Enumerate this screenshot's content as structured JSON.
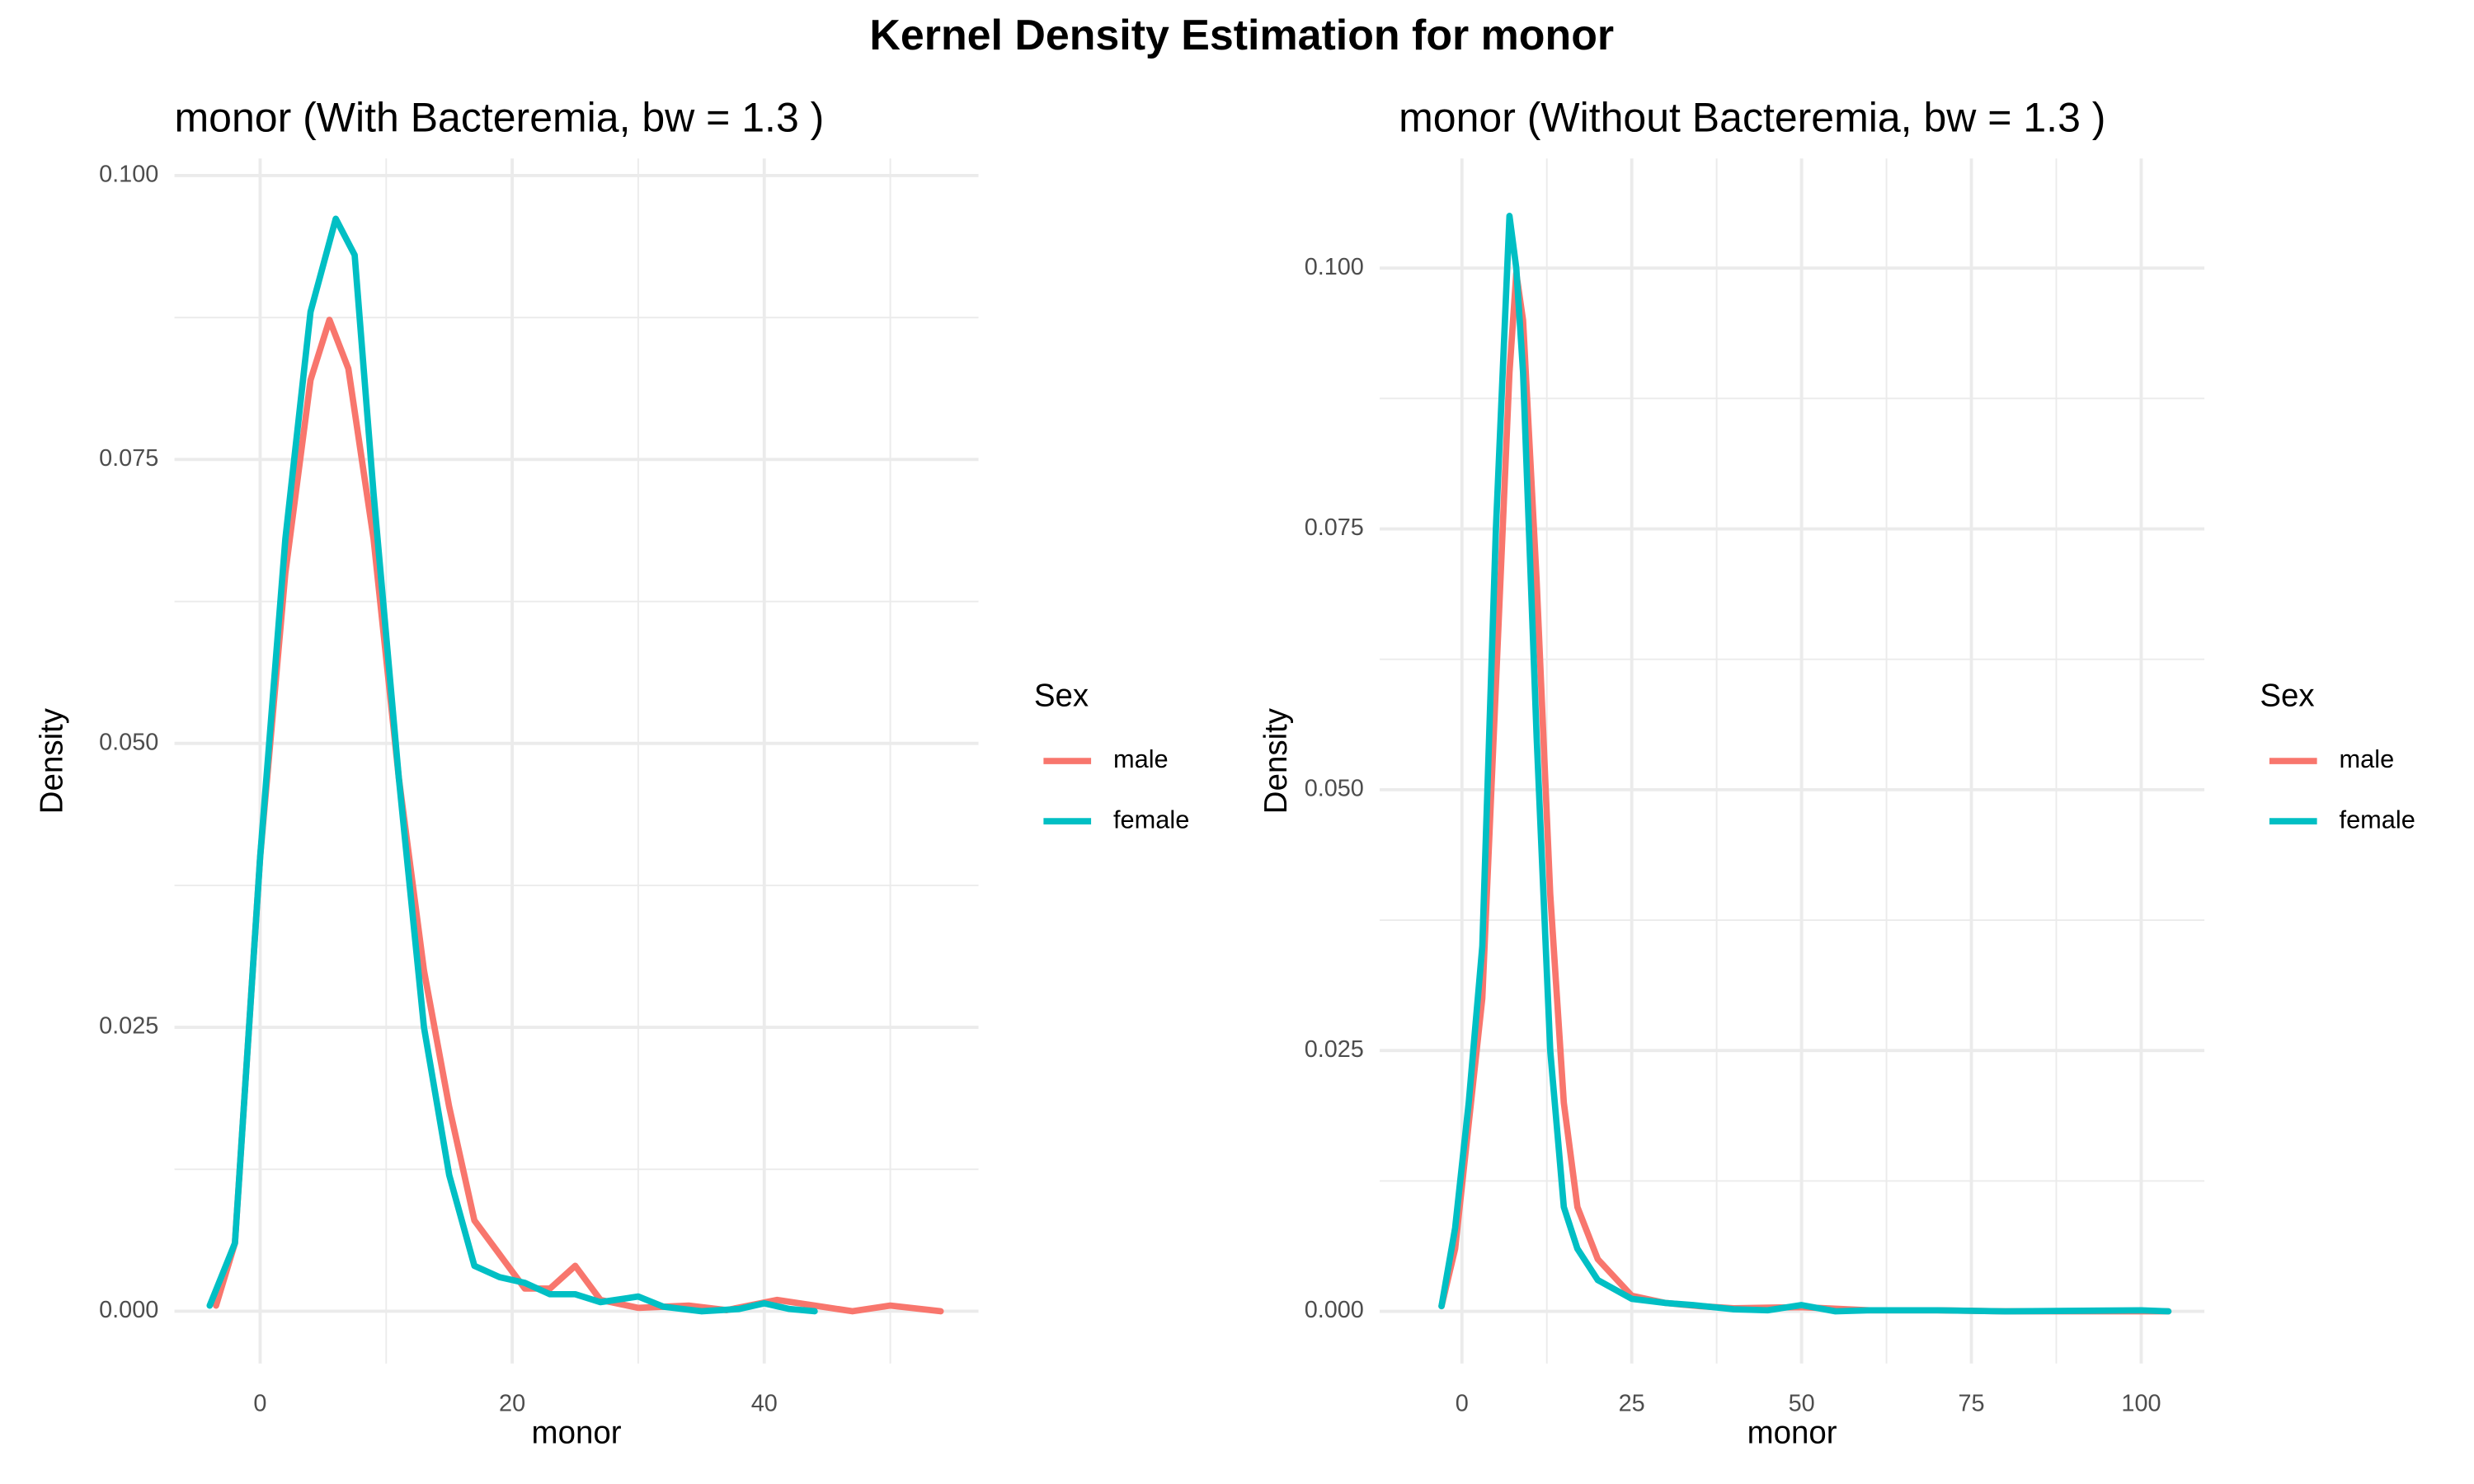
{
  "title": "Kernel Density Estimation for monor",
  "chart_data": [
    {
      "type": "line",
      "title": "monor (With Bacteremia, bw = 1.3 )",
      "x_label": "monor",
      "y_label": "Density",
      "legend_title": "Sex",
      "legend_position": "right",
      "grid": true,
      "xlim": [
        -6.8,
        57
      ],
      "ylim": [
        -0.0046,
        0.1015
      ],
      "xticks": [
        0,
        20,
        40
      ],
      "yticks": [
        {
          "value": 0,
          "label": "0.000"
        },
        {
          "value": 0.025,
          "label": "0.025"
        },
        {
          "value": 0.05,
          "label": "0.050"
        },
        {
          "value": 0.075,
          "label": "0.075"
        },
        {
          "value": 0.1,
          "label": "0.100"
        }
      ],
      "series": [
        {
          "name": "male",
          "color": "#F8766D",
          "x": [
            -3.5,
            -2,
            0,
            2,
            4,
            5.5,
            7,
            9,
            11,
            13,
            15,
            17,
            19,
            21,
            23,
            25,
            27,
            30,
            34,
            37,
            41,
            44,
            47,
            50,
            54
          ],
          "values": [
            0.0005,
            0.006,
            0.04,
            0.065,
            0.082,
            0.0873,
            0.083,
            0.068,
            0.047,
            0.03,
            0.018,
            0.008,
            0.005,
            0.002,
            0.002,
            0.004,
            0.001,
            0.0003,
            0.0005,
            0.0001,
            0.001,
            0.0005,
            0,
            0.0005,
            0
          ]
        },
        {
          "name": "female",
          "color": "#00BFC4",
          "x": [
            -4,
            -2,
            0,
            2,
            4,
            6,
            7.5,
            9,
            11,
            13,
            15,
            17,
            19,
            21,
            23,
            25,
            27,
            30,
            32,
            35,
            38,
            40,
            42,
            44
          ],
          "values": [
            0.0005,
            0.006,
            0.04,
            0.068,
            0.088,
            0.0962,
            0.093,
            0.072,
            0.047,
            0.025,
            0.012,
            0.004,
            0.003,
            0.0025,
            0.0015,
            0.0015,
            0.0008,
            0.0013,
            0.0004,
            0,
            0.0002,
            0.0007,
            0.0002,
            0
          ]
        }
      ]
    },
    {
      "type": "line",
      "title": "monor (Without Bacteremia, bw = 1.3 )",
      "x_label": "monor",
      "y_label": "Density",
      "legend_title": "Sex",
      "legend_position": "right",
      "grid": true,
      "xlim": [
        -12.1,
        109.3
      ],
      "ylim": [
        -0.005,
        0.1105
      ],
      "xticks": [
        0,
        25,
        50,
        75,
        100
      ],
      "yticks": [
        {
          "value": 0,
          "label": "0.000"
        },
        {
          "value": 0.025,
          "label": "0.025"
        },
        {
          "value": 0.05,
          "label": "0.050"
        },
        {
          "value": 0.075,
          "label": "0.075"
        },
        {
          "value": 0.1,
          "label": "0.100"
        }
      ],
      "series": [
        {
          "name": "male",
          "color": "#F8766D",
          "x": [
            -3,
            -1,
            1,
            3,
            5,
            7,
            8,
            9,
            11,
            13,
            15,
            17,
            20,
            25,
            30,
            35,
            40,
            50,
            60,
            70,
            80,
            100,
            104
          ],
          "values": [
            0.0005,
            0.006,
            0.018,
            0.03,
            0.06,
            0.09,
            0.0995,
            0.095,
            0.07,
            0.04,
            0.02,
            0.01,
            0.005,
            0.0015,
            0.0008,
            0.0005,
            0.0003,
            0.0004,
            0.0001,
            0.0001,
            0,
            0,
            0
          ]
        },
        {
          "name": "female",
          "color": "#00BFC4",
          "x": [
            -3,
            -1,
            1,
            3,
            5,
            7,
            8,
            9,
            11,
            13,
            15,
            17,
            20,
            25,
            30,
            34,
            40,
            45,
            50,
            55,
            60,
            70,
            80,
            100,
            104
          ],
          "values": [
            0.0005,
            0.008,
            0.02,
            0.035,
            0.075,
            0.105,
            0.1,
            0.09,
            0.055,
            0.025,
            0.01,
            0.006,
            0.003,
            0.0012,
            0.0008,
            0.0006,
            0.0002,
            0.0001,
            0.0006,
            0,
            0.0001,
            0.0001,
            0,
            0.0001,
            0
          ]
        }
      ]
    }
  ]
}
